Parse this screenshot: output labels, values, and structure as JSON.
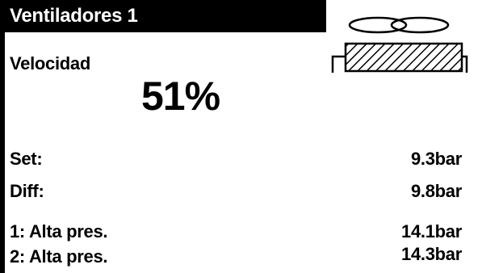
{
  "title": "Ventiladores 1",
  "speed": {
    "label": "Velocidad",
    "value": "51%"
  },
  "rows": [
    {
      "label": "Set:",
      "value": "9.3bar"
    },
    {
      "label": "Diff:",
      "value": "9.8bar"
    },
    {
      "label": "1: Alta pres.",
      "value": "14.1bar"
    },
    {
      "label": "2: Alta pres.",
      "value": "14.3bar"
    }
  ],
  "icons": {
    "fan": "fan-unit-icon"
  }
}
